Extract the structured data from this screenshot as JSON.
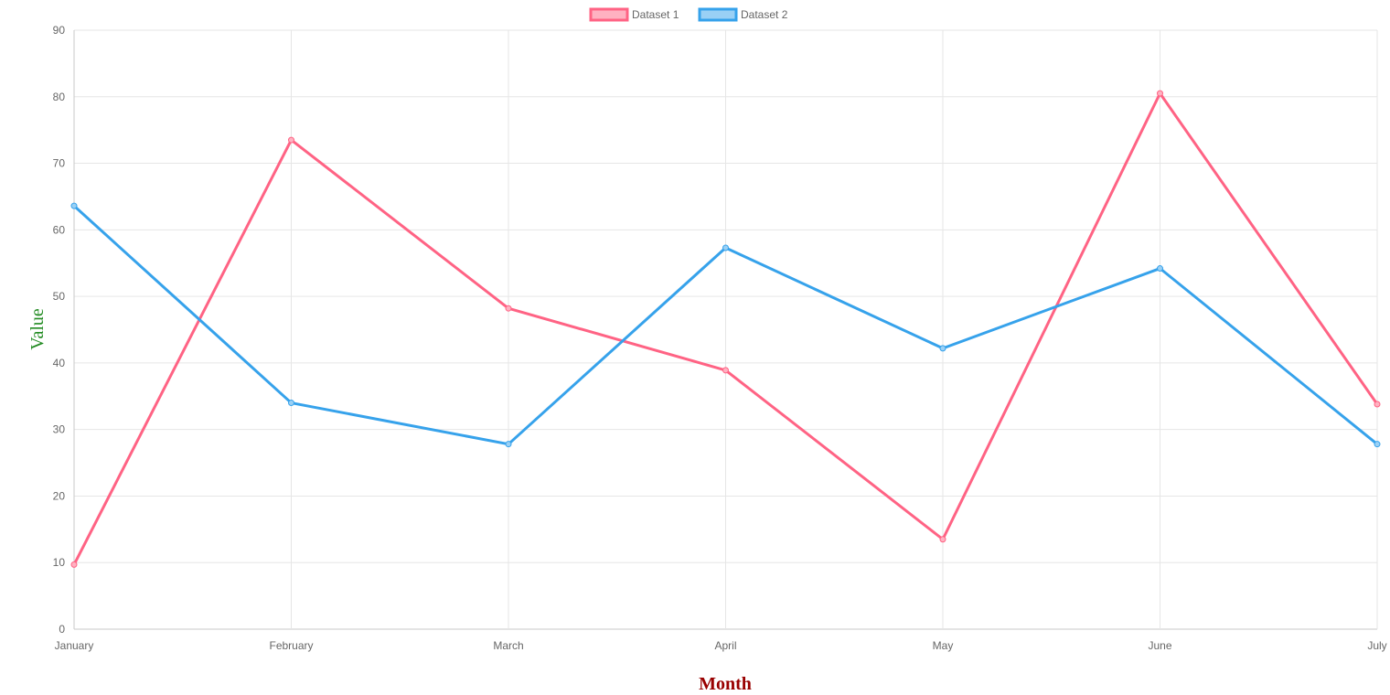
{
  "chart_data": {
    "type": "line",
    "categories": [
      "January",
      "February",
      "March",
      "April",
      "May",
      "June",
      "July"
    ],
    "series": [
      {
        "name": "Dataset 1",
        "color": "#ff6384",
        "fill": "#ffb1c1",
        "values": [
          9.7,
          73.5,
          48.2,
          38.9,
          13.5,
          80.5,
          33.8
        ]
      },
      {
        "name": "Dataset 2",
        "color": "#36a2eb",
        "fill": "#9ad0f5",
        "values": [
          63.6,
          34.0,
          27.8,
          57.3,
          42.2,
          54.2,
          27.8
        ]
      }
    ],
    "xlabel": "Month",
    "ylabel": "Value",
    "ylim": [
      0,
      90
    ],
    "yticks": [
      "0",
      "10",
      "20",
      "30",
      "40",
      "50",
      "60",
      "70",
      "80",
      "90"
    ],
    "grid": true,
    "legend_position": "top-center"
  }
}
